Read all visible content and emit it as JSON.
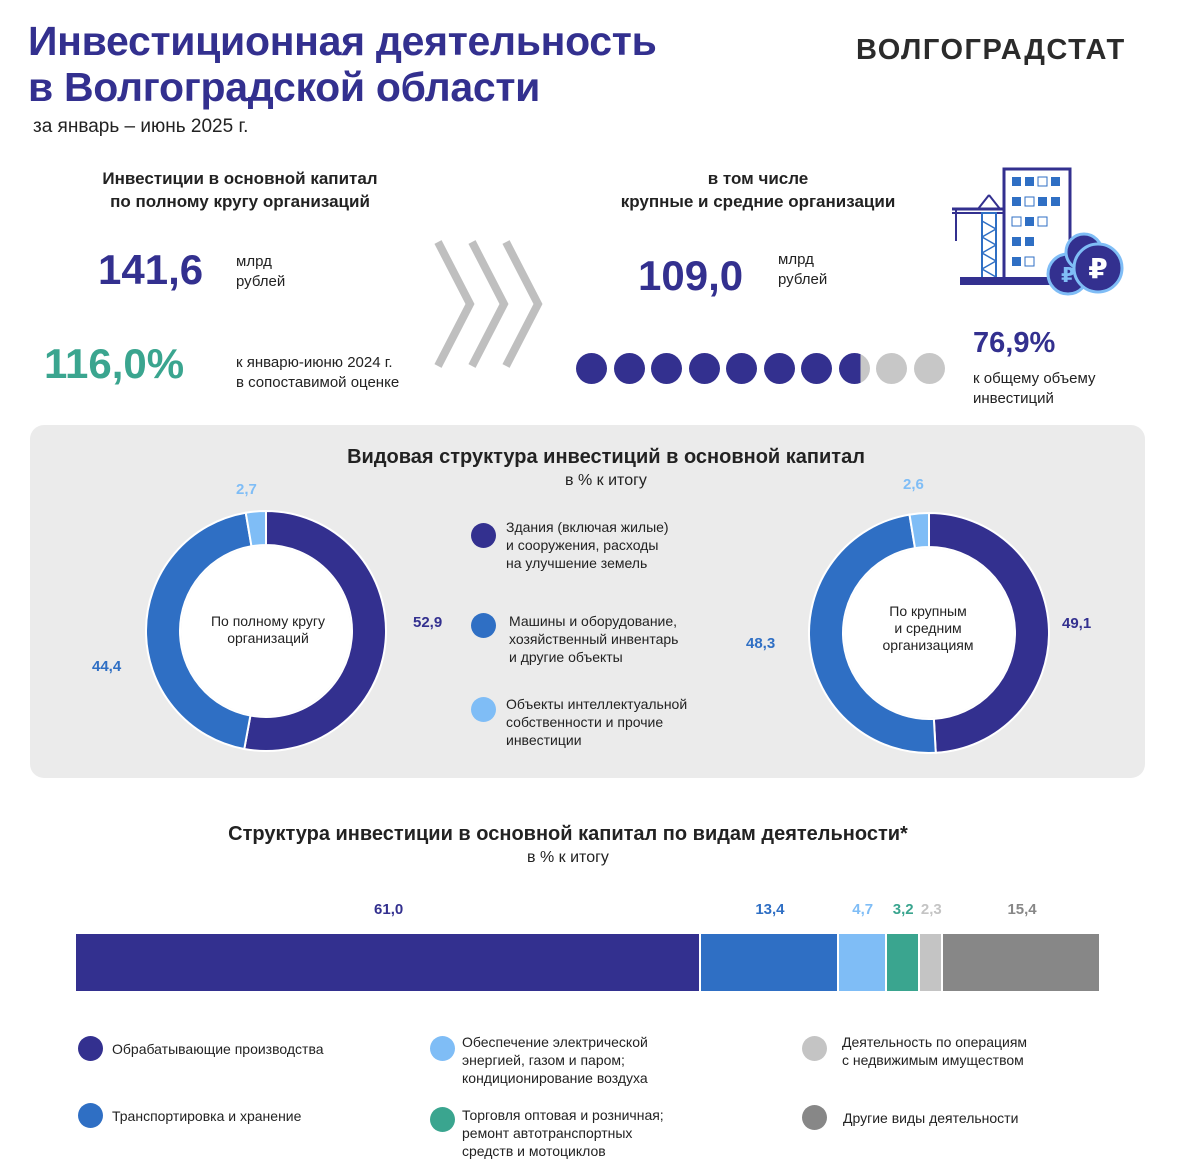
{
  "header": {
    "title_line1": "Инвестиционная деятельность",
    "title_line2": "в Волгоградской области",
    "period": "за январь – июнь 2025 г.",
    "brand": "ВОЛГОГРАДСТАТ"
  },
  "left_block": {
    "heading_line1": "Инвестиции  в основной капитал",
    "heading_line2": "по полному кругу организаций",
    "amount": "141,6",
    "unit_line1": "млрд",
    "unit_line2": "рублей",
    "growth": "116,0%",
    "growth_note_line1": "к январю-июню 2024 г.",
    "growth_note_line2": "в сопоставимой оценке"
  },
  "right_block": {
    "heading_line1": "в том числе",
    "heading_line2": "крупные и средние организации",
    "amount": "109,0",
    "unit_line1": "млрд",
    "unit_line2": "рублей",
    "share": "76,9%",
    "share_value": 76.9,
    "share_note_line1": "к общему объему",
    "share_note_line2": "инвестиций"
  },
  "colors": {
    "dark_blue": "#33308f",
    "mid_blue": "#2f6fc4",
    "light_blue": "#7fbdf6",
    "teal": "#3aa58f",
    "light_gray": "#c4c4c4",
    "dark_gray": "#878787",
    "dot_gray": "#c7c7c7"
  },
  "icons": {
    "chevrons": "triple-chevron-right-icon",
    "building": "building-crane-icon",
    "coins": "ruble-coins-icon"
  },
  "chart_data": [
    {
      "type": "pie",
      "title": "Видовая структура инвестиций в основной капитал",
      "subtitle": "в % к итогу",
      "center_label_line1": "По полному кругу",
      "center_label_line2": "организаций",
      "categories": [
        "Здания (включая жилые) и сооружения, расходы на улучшение земель",
        "Машины и оборудование, хозяйственный инвентарь и другие объекты",
        "Объекты интеллектуальной собственности и прочие инвестиции"
      ],
      "values": [
        52.9,
        44.4,
        2.7
      ],
      "labels": [
        "52,9",
        "44,4",
        "2,7"
      ]
    },
    {
      "type": "pie",
      "center_label_line1": "По крупным",
      "center_label_line2": "и средним",
      "center_label_line3": "организациям",
      "categories": [
        "Здания (включая жилые) и сооружения, расходы на улучшение земель",
        "Машины и оборудование, хозяйственный инвентарь и другие объекты",
        "Объекты интеллектуальной собственности и прочие инвестиции"
      ],
      "values": [
        49.1,
        48.3,
        2.6
      ],
      "labels": [
        "49,1",
        "48,3",
        "2,6"
      ]
    },
    {
      "type": "bar",
      "title": "Структура  инвестиции в основной капитал по видам деятельности*",
      "subtitle": "в % к итогу",
      "categories": [
        "Обрабатывающие производства",
        "Транспортировка и хранение",
        "Обеспечение электрической энергией, газом и паром; кондиционирование воздуха",
        "Торговля оптовая и розничная; ремонт автотранспортных средств и мотоциклов",
        "Деятельность по операциям с недвижимым имуществом",
        "Другие виды деятельности"
      ],
      "values": [
        61.0,
        13.4,
        4.7,
        3.2,
        2.3,
        15.4
      ],
      "labels": [
        "61,0",
        "13,4",
        "4,7",
        "3,2",
        "2,3",
        "15,4"
      ]
    }
  ],
  "pie_legend": [
    {
      "line1": "Здания (включая жилые)",
      "line2": "и сооружения, расходы",
      "line3": "на улучшение земель"
    },
    {
      "line1": "Машины и оборудование,",
      "line2": "хозяйственный инвентарь",
      "line3": "и другие объекты"
    },
    {
      "line1": "Объекты интеллектуальной",
      "line2": "собственности и прочие",
      "line3": "инвестиции"
    }
  ],
  "bar_legend": [
    {
      "line1": "Обрабатывающие производства"
    },
    {
      "line1": "Транспортировка и хранение"
    },
    {
      "line1": "Обеспечение электрической",
      "line2": "энергией, газом и паром;",
      "line3": "кондиционирование воздуха"
    },
    {
      "line1": "Торговля оптовая и розничная;",
      "line2": "ремонт автотранспортных",
      "line3": "средств и мотоциклов"
    },
    {
      "line1": "Деятельность по операциям",
      "line2": "с недвижимым имуществом"
    },
    {
      "line1": "Другие виды деятельности"
    }
  ]
}
